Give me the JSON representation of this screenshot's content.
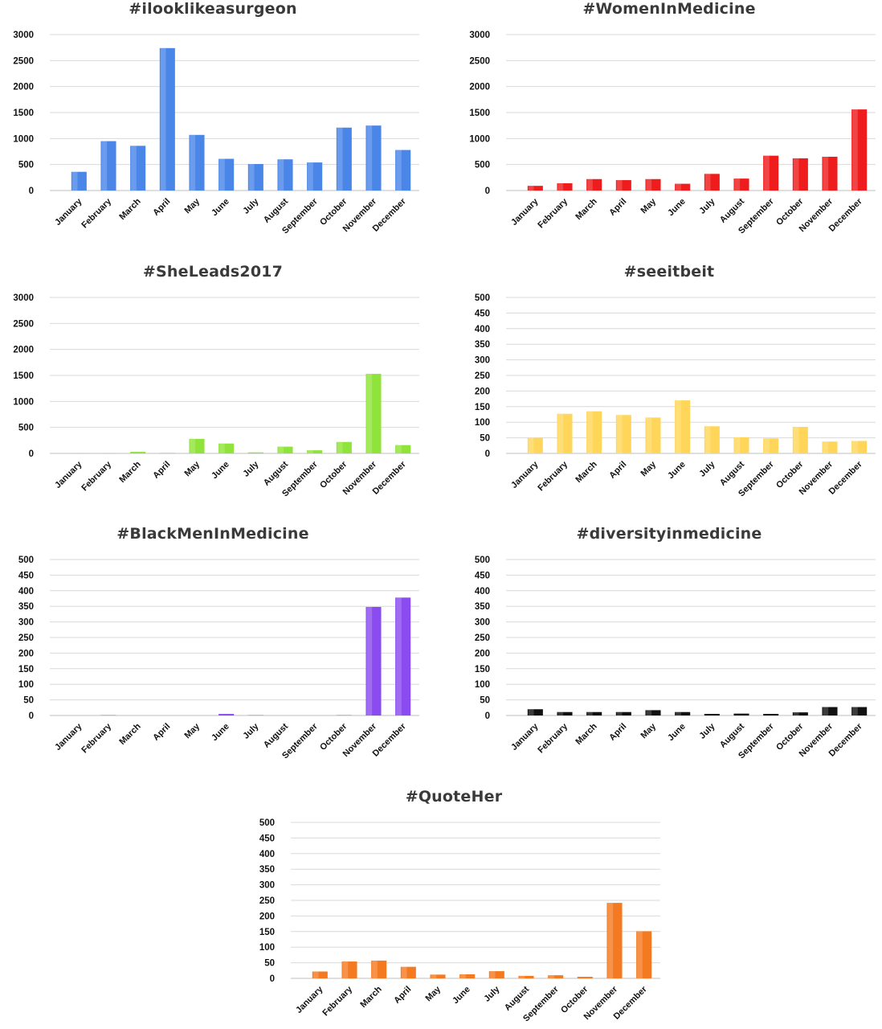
{
  "chart_data": [
    {
      "type": "bar",
      "title": "#ilooklikeasurgeon",
      "categories": [
        "January",
        "February",
        "March",
        "April",
        "May",
        "June",
        "July",
        "August",
        "September",
        "October",
        "November",
        "December"
      ],
      "values": [
        360,
        950,
        860,
        2740,
        1070,
        610,
        510,
        600,
        540,
        1210,
        1250,
        780
      ],
      "ylim": [
        0,
        3000
      ],
      "yticks": [
        0,
        500,
        1000,
        1500,
        2000,
        2500,
        3000
      ],
      "color": "#4a86e8",
      "grid": true,
      "legend": "none"
    },
    {
      "type": "bar",
      "title": "#WomenInMedicine",
      "categories": [
        "January",
        "February",
        "March",
        "April",
        "May",
        "June",
        "July",
        "August",
        "September",
        "October",
        "November",
        "December"
      ],
      "values": [
        90,
        140,
        220,
        200,
        220,
        130,
        320,
        230,
        670,
        620,
        650,
        1560
      ],
      "ylim": [
        0,
        3000
      ],
      "yticks": [
        0,
        500,
        1000,
        1500,
        2000,
        2500,
        3000
      ],
      "color": "#ee1c1c",
      "grid": true,
      "legend": "none"
    },
    {
      "type": "bar",
      "title": "#SheLeads2017",
      "categories": [
        "January",
        "February",
        "March",
        "April",
        "May",
        "June",
        "July",
        "August",
        "September",
        "October",
        "November",
        "December"
      ],
      "values": [
        5,
        5,
        30,
        10,
        280,
        190,
        20,
        130,
        60,
        220,
        1530,
        160
      ],
      "ylim": [
        0,
        3000
      ],
      "yticks": [
        0,
        500,
        1000,
        1500,
        2000,
        2500,
        3000
      ],
      "color": "#8fe33a",
      "grid": true,
      "legend": "none"
    },
    {
      "type": "bar",
      "title": "#seeitbeit",
      "categories": [
        "January",
        "February",
        "March",
        "April",
        "May",
        "June",
        "July",
        "August",
        "September",
        "October",
        "November",
        "December"
      ],
      "values": [
        50,
        127,
        135,
        123,
        115,
        170,
        87,
        52,
        48,
        85,
        38,
        40
      ],
      "ylim": [
        0,
        500
      ],
      "yticks": [
        0,
        50,
        100,
        150,
        200,
        250,
        300,
        350,
        400,
        450,
        500
      ],
      "color": "#ffd65a",
      "grid": true,
      "legend": "none"
    },
    {
      "type": "bar",
      "title": "#BlackMenInMedicine",
      "categories": [
        "January",
        "February",
        "March",
        "April",
        "May",
        "June",
        "July",
        "August",
        "September",
        "October",
        "November",
        "December"
      ],
      "values": [
        0,
        1,
        0,
        0,
        0,
        5,
        1,
        0,
        0,
        1,
        348,
        378
      ],
      "ylim": [
        0,
        500
      ],
      "yticks": [
        0,
        50,
        100,
        150,
        200,
        250,
        300,
        350,
        400,
        450,
        500
      ],
      "color": "#8a4cf0",
      "grid": true,
      "legend": "none"
    },
    {
      "type": "bar",
      "title": "#diversityinmedicine",
      "categories": [
        "January",
        "February",
        "March",
        "April",
        "May",
        "June",
        "July",
        "August",
        "September",
        "October",
        "November",
        "December"
      ],
      "values": [
        20,
        11,
        11,
        11,
        17,
        11,
        5,
        6,
        5,
        10,
        27,
        27
      ],
      "ylim": [
        0,
        500
      ],
      "yticks": [
        0,
        50,
        100,
        150,
        200,
        250,
        300,
        350,
        400,
        450,
        500
      ],
      "color": "#111111",
      "grid": true,
      "legend": "none"
    },
    {
      "type": "bar",
      "title": "#QuoteHer",
      "categories": [
        "January",
        "February",
        "March",
        "April",
        "May",
        "June",
        "July",
        "August",
        "September",
        "October",
        "November",
        "December"
      ],
      "values": [
        22,
        54,
        57,
        37,
        12,
        13,
        23,
        8,
        10,
        5,
        242,
        151
      ],
      "ylim": [
        0,
        500
      ],
      "yticks": [
        0,
        50,
        100,
        150,
        200,
        250,
        300,
        350,
        400,
        450,
        500
      ],
      "color": "#f47a21",
      "grid": true,
      "legend": "none"
    }
  ]
}
